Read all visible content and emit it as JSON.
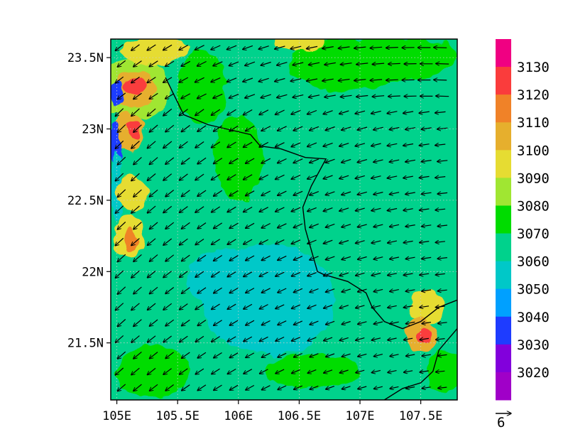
{
  "map": {
    "lon_range": [
      104.95,
      107.8
    ],
    "lat_range": [
      21.1,
      23.63
    ],
    "x_ticks": [
      {
        "value": 105.0,
        "label": "105E"
      },
      {
        "value": 105.5,
        "label": "105.5E"
      },
      {
        "value": 106.0,
        "label": "106E"
      },
      {
        "value": 106.5,
        "label": "106.5E"
      },
      {
        "value": 107.0,
        "label": "107E"
      },
      {
        "value": 107.5,
        "label": "107.5E"
      }
    ],
    "y_ticks": [
      {
        "value": 23.5,
        "label": "23.5N"
      },
      {
        "value": 23.0,
        "label": "23N"
      },
      {
        "value": 22.5,
        "label": "22.5N"
      },
      {
        "value": 22.0,
        "label": "22N"
      },
      {
        "value": 21.5,
        "label": "21.5N"
      }
    ],
    "grid": "dotted",
    "background_level": 3060,
    "fields": [
      {
        "lon": 105.15,
        "lat": 23.28,
        "rlon": 0.28,
        "rlat": 0.22,
        "level": 3080
      },
      {
        "lon": 105.15,
        "lat": 23.28,
        "rlon": 0.17,
        "rlat": 0.13,
        "level": 3100
      },
      {
        "lon": 105.15,
        "lat": 23.3,
        "rlon": 0.09,
        "rlat": 0.07,
        "level": 3120
      },
      {
        "lon": 105.0,
        "lat": 23.25,
        "rlon": 0.06,
        "rlat": 0.08,
        "level": 3030
      },
      {
        "lon": 105.1,
        "lat": 22.98,
        "rlon": 0.12,
        "rlat": 0.14,
        "level": 3100
      },
      {
        "lon": 105.13,
        "lat": 22.98,
        "rlon": 0.05,
        "rlat": 0.06,
        "level": 3120
      },
      {
        "lon": 104.99,
        "lat": 22.88,
        "rlon": 0.06,
        "rlat": 0.15,
        "level": 3030
      },
      {
        "lon": 105.0,
        "lat": 22.6,
        "rlon": 0.05,
        "rlat": 0.25,
        "level": 3050
      },
      {
        "lon": 105.13,
        "lat": 22.55,
        "rlon": 0.12,
        "rlat": 0.12,
        "level": 3090
      },
      {
        "lon": 105.1,
        "lat": 22.25,
        "rlon": 0.13,
        "rlat": 0.15,
        "level": 3090
      },
      {
        "lon": 105.12,
        "lat": 22.23,
        "rlon": 0.07,
        "rlat": 0.08,
        "level": 3110
      },
      {
        "lon": 105.3,
        "lat": 23.55,
        "rlon": 0.28,
        "rlat": 0.1,
        "level": 3090
      },
      {
        "lon": 106.0,
        "lat": 22.8,
        "rlon": 0.2,
        "rlat": 0.3,
        "level": 3070
      },
      {
        "lon": 105.7,
        "lat": 23.3,
        "rlon": 0.2,
        "rlat": 0.25,
        "level": 3070
      },
      {
        "lon": 106.9,
        "lat": 23.45,
        "rlon": 0.5,
        "rlat": 0.18,
        "level": 3070
      },
      {
        "lon": 106.5,
        "lat": 23.6,
        "rlon": 0.2,
        "rlat": 0.06,
        "level": 3090
      },
      {
        "lon": 107.3,
        "lat": 23.5,
        "rlon": 0.5,
        "rlat": 0.15,
        "level": 3070
      },
      {
        "lon": 106.25,
        "lat": 21.8,
        "rlon": 0.55,
        "rlat": 0.38,
        "level": 3050
      },
      {
        "lon": 105.85,
        "lat": 21.95,
        "rlon": 0.28,
        "rlat": 0.2,
        "level": 3050
      },
      {
        "lon": 107.55,
        "lat": 21.75,
        "rlon": 0.15,
        "rlat": 0.12,
        "level": 3090
      },
      {
        "lon": 107.5,
        "lat": 21.55,
        "rlon": 0.12,
        "rlat": 0.12,
        "level": 3100
      },
      {
        "lon": 107.52,
        "lat": 21.55,
        "rlon": 0.05,
        "rlat": 0.05,
        "level": 3120
      },
      {
        "lon": 105.3,
        "lat": 21.3,
        "rlon": 0.3,
        "rlat": 0.18,
        "level": 3070
      },
      {
        "lon": 106.6,
        "lat": 21.3,
        "rlon": 0.4,
        "rlat": 0.12,
        "level": 3070
      },
      {
        "lon": 107.7,
        "lat": 21.3,
        "rlon": 0.15,
        "rlat": 0.15,
        "level": 3070
      }
    ],
    "wind": {
      "u": -2.2,
      "v": -1.9,
      "ref_vector_label": "6"
    },
    "border": [
      [
        105.4,
        23.36
      ],
      [
        105.55,
        23.1
      ],
      [
        105.75,
        23.03
      ],
      [
        106.0,
        22.98
      ],
      [
        106.1,
        22.96
      ],
      [
        106.18,
        22.88
      ],
      [
        106.35,
        22.86
      ],
      [
        106.55,
        22.8
      ],
      [
        106.72,
        22.79
      ],
      [
        106.6,
        22.6
      ],
      [
        106.53,
        22.45
      ],
      [
        106.55,
        22.3
      ],
      [
        106.6,
        22.15
      ],
      [
        106.65,
        22.0
      ],
      [
        106.7,
        21.98
      ],
      [
        106.9,
        21.93
      ],
      [
        107.05,
        21.85
      ],
      [
        107.1,
        21.75
      ],
      [
        107.2,
        21.65
      ],
      [
        107.35,
        21.6
      ],
      [
        107.5,
        21.65
      ],
      [
        107.65,
        21.75
      ],
      [
        107.8,
        21.8
      ]
    ],
    "coast": [
      [
        107.8,
        21.6
      ],
      [
        107.65,
        21.45
      ],
      [
        107.6,
        21.3
      ],
      [
        107.5,
        21.22
      ],
      [
        107.35,
        21.18
      ],
      [
        107.2,
        21.1
      ]
    ]
  },
  "colorbar": {
    "palette": [
      {
        "level": 3010,
        "color": "#a000c8"
      },
      {
        "level": 3020,
        "color": "#8200dc"
      },
      {
        "level": 3030,
        "color": "#1e3cff"
      },
      {
        "level": 3040,
        "color": "#00a0ff"
      },
      {
        "level": 3050,
        "color": "#00c8c8"
      },
      {
        "level": 3060,
        "color": "#00d28c"
      },
      {
        "level": 3070,
        "color": "#00dc00"
      },
      {
        "level": 3080,
        "color": "#a0e632"
      },
      {
        "level": 3090,
        "color": "#e6dc32"
      },
      {
        "level": 3100,
        "color": "#e6af2d"
      },
      {
        "level": 3110,
        "color": "#f08228"
      },
      {
        "level": 3120,
        "color": "#fa3c3c"
      },
      {
        "level": 3130,
        "color": "#f00082"
      }
    ],
    "labels": [
      3020,
      3030,
      3040,
      3050,
      3060,
      3070,
      3080,
      3090,
      3100,
      3110,
      3120,
      3130
    ]
  }
}
